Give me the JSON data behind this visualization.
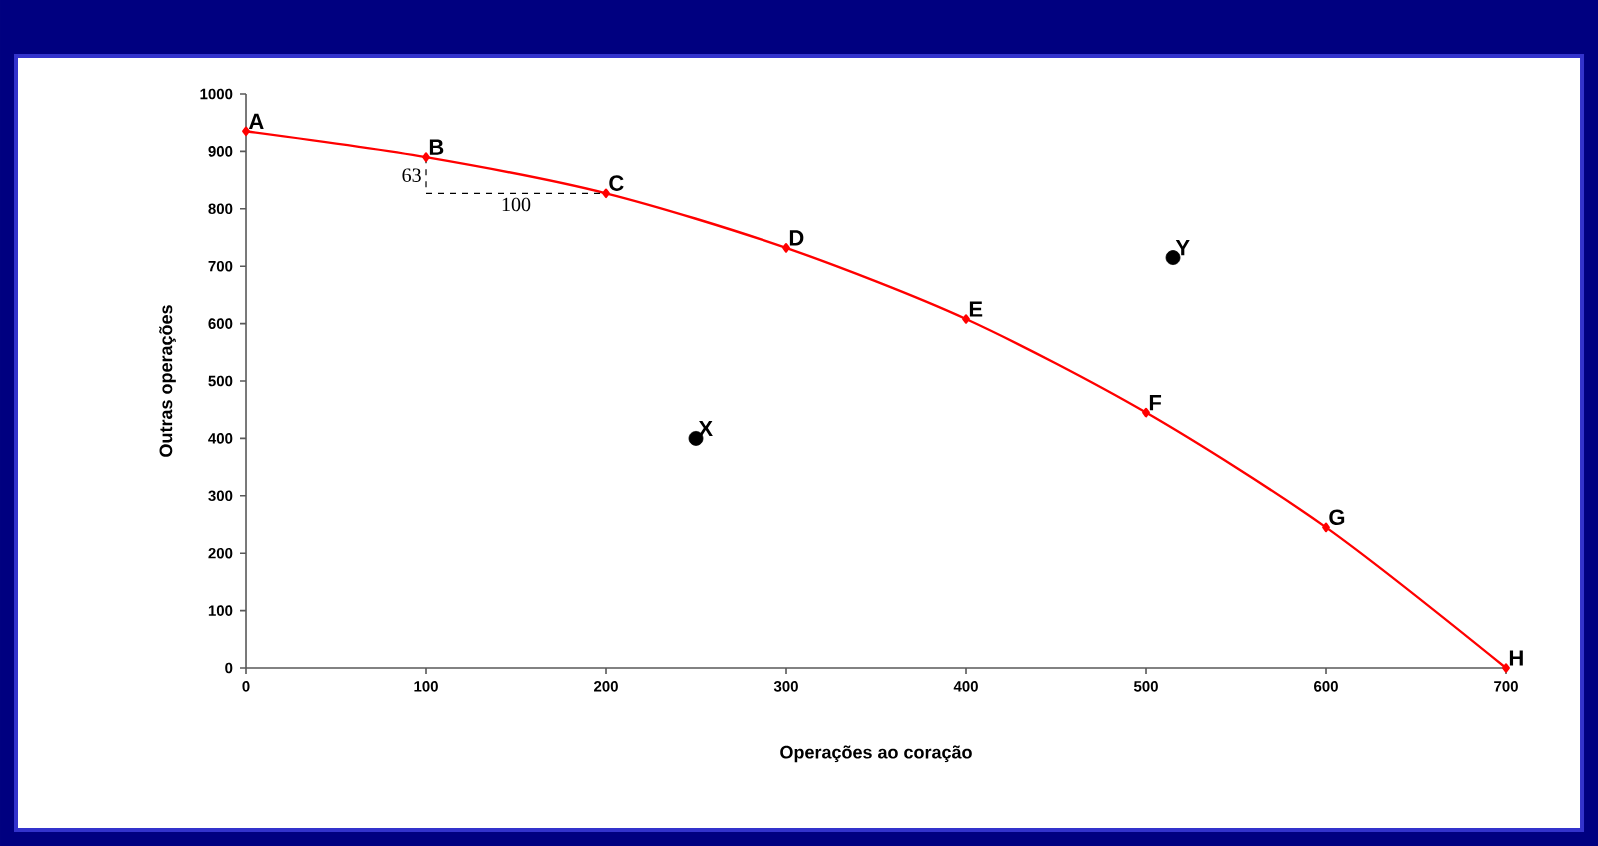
{
  "chart_data": {
    "type": "line",
    "xlabel": "Operações ao coração",
    "ylabel": "Outras operações",
    "xlim": [
      0,
      700
    ],
    "ylim": [
      0,
      1000
    ],
    "xticks": [
      0,
      100,
      200,
      300,
      400,
      500,
      600,
      700
    ],
    "yticks": [
      0,
      100,
      200,
      300,
      400,
      500,
      600,
      700,
      800,
      900,
      1000
    ],
    "grid": false,
    "series": [
      {
        "color": "#ff0000",
        "marker": "diamond",
        "x": [
          0,
          100,
          200,
          300,
          400,
          500,
          600,
          700
        ],
        "values": [
          935,
          890,
          827,
          732,
          608,
          445,
          245,
          0
        ]
      },
      {
        "type": "scatter",
        "color": "#000000",
        "marker": "circle",
        "x": [
          250,
          515
        ],
        "values": [
          400,
          715
        ]
      }
    ],
    "annotations": [
      {
        "text": "A",
        "x": 0,
        "y": 935
      },
      {
        "text": "B",
        "x": 100,
        "y": 890
      },
      {
        "text": "C",
        "x": 200,
        "y": 827
      },
      {
        "text": "D",
        "x": 300,
        "y": 732
      },
      {
        "text": "E",
        "x": 400,
        "y": 608
      },
      {
        "text": "F",
        "x": 500,
        "y": 445
      },
      {
        "text": "G",
        "x": 600,
        "y": 245
      },
      {
        "text": "H",
        "x": 700,
        "y": 0
      },
      {
        "text": "X",
        "x": 250,
        "y": 400
      },
      {
        "text": "Y",
        "x": 515,
        "y": 715
      },
      {
        "text": "63",
        "x": 100,
        "y": 890
      },
      "100"
    ]
  }
}
